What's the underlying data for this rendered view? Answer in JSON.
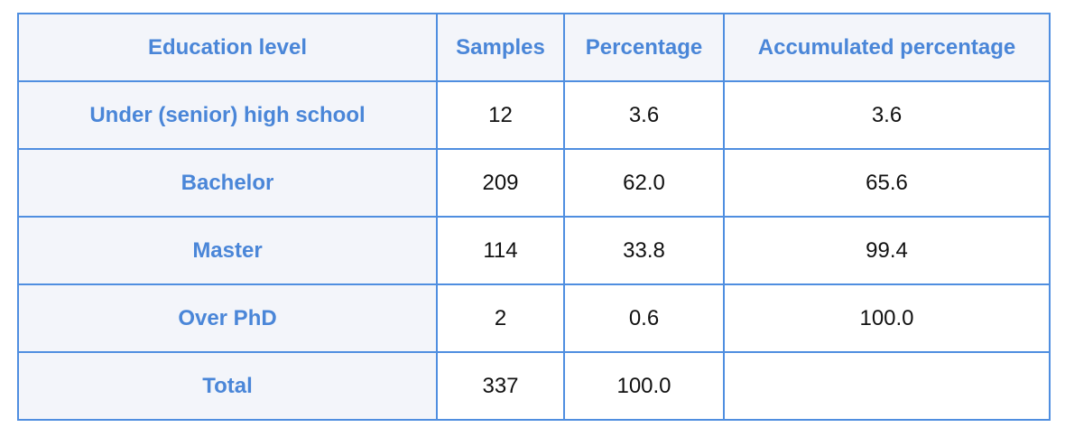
{
  "table": {
    "headers": [
      "Education level",
      "Samples",
      "Percentage",
      "Accumulated percentage"
    ],
    "rows": [
      {
        "label": "Under (senior) high school",
        "cells": [
          "12",
          "3.6",
          "3.6"
        ]
      },
      {
        "label": "Bachelor",
        "cells": [
          "209",
          "62.0",
          "65.6"
        ]
      },
      {
        "label": "Master",
        "cells": [
          "114",
          "33.8",
          "99.4"
        ]
      },
      {
        "label": "Over PhD",
        "cells": [
          "2",
          "0.6",
          "100.0"
        ]
      },
      {
        "label": "Total",
        "cells": [
          "337",
          "100.0",
          ""
        ]
      }
    ]
  },
  "colors": {
    "border": "#4f8ee0",
    "header_text": "#4a86d8",
    "header_background": "#f3f5fa",
    "body_text": "#111111"
  }
}
